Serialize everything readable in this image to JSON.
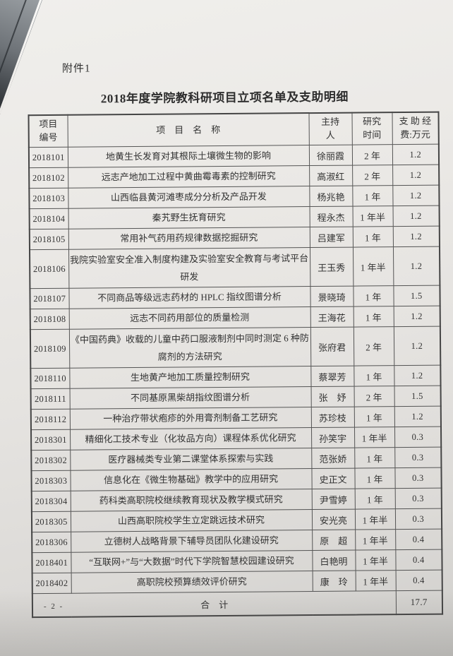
{
  "doc": {
    "attachment_label": "附件1",
    "title": "2018年度学院教科研项目立项名单及支助明细",
    "page_number": "- 2 -"
  },
  "table": {
    "headers": {
      "no_line1": "项目",
      "no_line2": "编号",
      "name": "项　目　名　称",
      "host_line1": "主持",
      "host_line2": "人",
      "time_line1": "研究",
      "time_line2": "时间",
      "fund_line1": "支 助 经",
      "fund_line2": "费:万元"
    },
    "rows": [
      {
        "no": "2018101",
        "name": "地黄生长发育对其根际土壤微生物的影响",
        "host": "徐丽霞",
        "time": "2 年",
        "fund": "1.2",
        "tall": false
      },
      {
        "no": "2018102",
        "name": "远志产地加工过程中黄曲霉毒素的控制研究",
        "host": "高淑红",
        "time": "2 年",
        "fund": "1.2",
        "tall": false
      },
      {
        "no": "2018103",
        "name": "山西临县黄河滩枣成分分析及产品开发",
        "host": "杨兆艳",
        "time": "1 年",
        "fund": "1.2",
        "tall": false
      },
      {
        "no": "2018104",
        "name": "秦艽野生抚育研究",
        "host": "程永杰",
        "time": "1 年半",
        "fund": "1.2",
        "tall": false
      },
      {
        "no": "2018105",
        "name": "常用补气药用药规律数据挖掘研究",
        "host": "吕建军",
        "time": "1 年",
        "fund": "1.2",
        "tall": false
      },
      {
        "no": "2018106",
        "name": "我院实验室安全准入制度构建及实验室安全教育与考试平台研发",
        "host": "王玉秀",
        "time": "1 年半",
        "fund": "1.2",
        "tall": true
      },
      {
        "no": "2018107",
        "name": "不同商品等级远志药材的 HPLC 指纹图谱分析",
        "host": "景晓琦",
        "time": "1 年",
        "fund": "1.5",
        "tall": false
      },
      {
        "no": "2018108",
        "name": "远志不同药用部位的质量检测",
        "host": "王海花",
        "time": "1 年",
        "fund": "1.2",
        "tall": false
      },
      {
        "no": "2018109",
        "name": "《中国药典》收载的儿童中药口服液制剂中同时测定 6 种防腐剂的方法研究",
        "host": "张府君",
        "time": "2 年",
        "fund": "1.2",
        "tall": true
      },
      {
        "no": "2018110",
        "name": "生地黄产地加工质量控制研究",
        "host": "蔡翠芳",
        "time": "1 年",
        "fund": "1.2",
        "tall": false
      },
      {
        "no": "2018111",
        "name": "不同基原黑柴胡指纹图谱分析",
        "host": "张　妤",
        "time": "2 年",
        "fund": "1.5",
        "tall": false
      },
      {
        "no": "2018112",
        "name": "一种治疗带状疱疹的外用膏剂制备工艺研究",
        "host": "苏珍枝",
        "time": "1 年",
        "fund": "1.2",
        "tall": false
      },
      {
        "no": "2018301",
        "name": "精细化工技术专业（化妆品方向）课程体系优化研究",
        "host": "孙笑宇",
        "time": "1 年半",
        "fund": "0.3",
        "tall": false
      },
      {
        "no": "2018302",
        "name": "医疗器械类专业第二课堂体系探索与实践",
        "host": "范张娇",
        "time": "1 年",
        "fund": "0.3",
        "tall": false
      },
      {
        "no": "2018303",
        "name": "信息化在《微生物基础》教学中的应用研究",
        "host": "史正文",
        "time": "1 年",
        "fund": "0.3",
        "tall": false
      },
      {
        "no": "2018304",
        "name": "药科类高职院校继续教育现状及教学模式研究",
        "host": "尹雪婷",
        "time": "1 年",
        "fund": "0.3",
        "tall": false
      },
      {
        "no": "2018305",
        "name": "山西高职院校学生立定跳远技术研究",
        "host": "安光亮",
        "time": "1 年半",
        "fund": "0.3",
        "tall": false
      },
      {
        "no": "2018306",
        "name": "立德树人战略背景下辅导员团队化建设研究",
        "host": "原　超",
        "time": "1 年半",
        "fund": "0.4",
        "tall": false
      },
      {
        "no": "2018401",
        "name": "“互联网+”与“大数据”时代下学院智慧校园建设研究",
        "host": "白艳明",
        "time": "1 年半",
        "fund": "0.4",
        "tall": false
      },
      {
        "no": "2018402",
        "name": "高职院校预算绩效评价研究",
        "host": "康　玲",
        "time": "1 年半",
        "fund": "0.4",
        "tall": false
      }
    ],
    "total": {
      "label": "合　计",
      "value": "17.7"
    }
  }
}
